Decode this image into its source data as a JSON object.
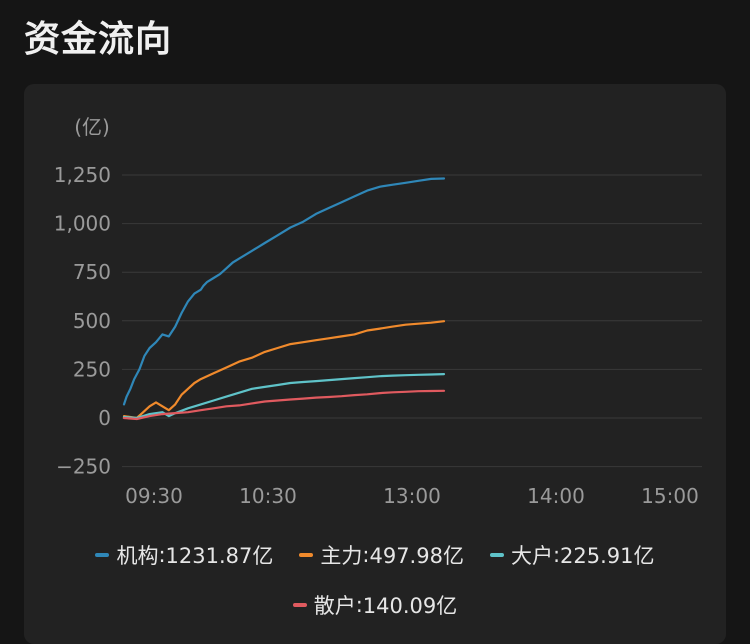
{
  "header": {
    "title": "资金流向"
  },
  "chart_data": {
    "type": "line",
    "unit_label": "(亿)",
    "ylim": [
      -250,
      1350
    ],
    "yticks": [
      1250,
      1000,
      750,
      500,
      250,
      0,
      -250
    ],
    "ytick_labels": [
      "1,250",
      "1,000",
      "750",
      "500",
      "250",
      "0",
      "−250"
    ],
    "x_ticks": [
      "09:30",
      "10:30",
      "13:00",
      "14:00",
      "15:00"
    ],
    "grid": true,
    "legend_placement": "bottom",
    "series": [
      {
        "name": "机构",
        "color": "#2f87b8",
        "legend_value": "1231.87亿",
        "x": [
          0,
          0.02,
          0.05,
          0.08,
          0.12,
          0.16,
          0.2,
          0.25,
          0.3,
          0.35,
          0.4,
          0.45,
          0.5,
          0.55,
          0.6,
          0.62,
          0.65,
          0.7,
          0.75,
          0.8,
          0.85,
          0.9,
          0.95,
          1.0,
          1.05,
          1.1,
          1.2,
          1.3,
          1.4,
          1.5,
          1.6,
          1.7,
          1.8,
          1.9,
          2.0,
          2.1,
          2.2,
          2.3,
          2.4,
          2.5
        ],
        "y": [
          70,
          110,
          150,
          200,
          250,
          320,
          360,
          390,
          430,
          420,
          470,
          540,
          600,
          640,
          660,
          680,
          700,
          720,
          740,
          770,
          800,
          820,
          840,
          860,
          880,
          900,
          940,
          980,
          1010,
          1050,
          1080,
          1110,
          1140,
          1170,
          1190,
          1200,
          1210,
          1220,
          1230,
          1232
        ]
      },
      {
        "name": "主力",
        "color": "#f08a2c",
        "legend_value": "497.98亿",
        "x": [
          0,
          0.1,
          0.15,
          0.2,
          0.25,
          0.3,
          0.35,
          0.4,
          0.45,
          0.5,
          0.55,
          0.6,
          0.7,
          0.8,
          0.9,
          1.0,
          1.1,
          1.2,
          1.3,
          1.4,
          1.5,
          1.6,
          1.7,
          1.8,
          1.9,
          2.0,
          2.1,
          2.2,
          2.3,
          2.4,
          2.5
        ],
        "y": [
          10,
          0,
          30,
          60,
          80,
          60,
          40,
          70,
          120,
          150,
          180,
          200,
          230,
          260,
          290,
          310,
          340,
          360,
          380,
          390,
          400,
          410,
          420,
          430,
          450,
          460,
          470,
          480,
          485,
          490,
          498
        ]
      },
      {
        "name": "大户",
        "color": "#5fc3c9",
        "legend_value": "225.91亿",
        "x": [
          0,
          0.1,
          0.2,
          0.3,
          0.35,
          0.4,
          0.5,
          0.6,
          0.7,
          0.8,
          0.9,
          1.0,
          1.1,
          1.2,
          1.3,
          1.4,
          1.5,
          1.6,
          1.7,
          1.8,
          1.9,
          2.0,
          2.1,
          2.2,
          2.3,
          2.4,
          2.5
        ],
        "y": [
          5,
          0,
          20,
          30,
          10,
          25,
          50,
          70,
          90,
          110,
          130,
          150,
          160,
          170,
          180,
          185,
          190,
          195,
          200,
          205,
          210,
          215,
          218,
          220,
          222,
          224,
          226
        ]
      },
      {
        "name": "散户",
        "color": "#e05a5f",
        "legend_value": "140.09亿",
        "x": [
          0,
          0.1,
          0.2,
          0.3,
          0.4,
          0.5,
          0.6,
          0.7,
          0.8,
          0.9,
          1.0,
          1.1,
          1.2,
          1.3,
          1.4,
          1.5,
          1.6,
          1.7,
          1.8,
          1.9,
          2.0,
          2.1,
          2.2,
          2.3,
          2.4,
          2.5
        ],
        "y": [
          0,
          -5,
          10,
          20,
          25,
          30,
          40,
          50,
          60,
          65,
          75,
          85,
          90,
          95,
          100,
          105,
          108,
          112,
          118,
          122,
          128,
          132,
          135,
          138,
          139,
          140
        ]
      }
    ]
  }
}
